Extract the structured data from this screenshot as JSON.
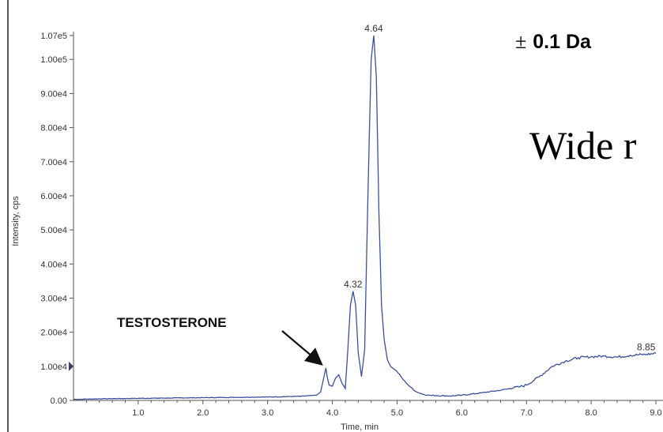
{
  "annotations": {
    "tolerance_symbol": "±",
    "tolerance_value": "0.1 Da",
    "slide_text": "Wide r",
    "compound_label": "TESTOSTERONE"
  },
  "colors": {
    "trace": "#3b4fa0",
    "axis": "#555555",
    "marker": "#3a3f6a"
  },
  "chart_data": {
    "type": "line",
    "title": "",
    "xlabel": "Time, min",
    "ylabel": "Intensity, cps",
    "xlim": [
      0,
      9.0
    ],
    "ylim": [
      0,
      107000
    ],
    "x_ticks": [
      1.0,
      2.0,
      3.0,
      4.0,
      5.0,
      6.0,
      7.0,
      8.0,
      9.0
    ],
    "x_tick_labels": [
      "1.0",
      "2.0",
      "3.0",
      "4.0",
      "5.0",
      "6.0",
      "7.0",
      "8.0",
      "9.0"
    ],
    "y_ticks": [
      0,
      10000,
      20000,
      30000,
      40000,
      50000,
      60000,
      70000,
      80000,
      90000,
      100000,
      107000
    ],
    "y_tick_labels": [
      "0.00",
      "1.00e4",
      "2.00e4",
      "3.00e4",
      "4.00e4",
      "5.00e4",
      "6.00e4",
      "7.00e4",
      "8.00e4",
      "9.00e4",
      "1.00e5",
      "1.07e5"
    ],
    "grid": false,
    "legend": "none",
    "series": [
      {
        "x": [
          0.0,
          0.5,
          1.0,
          1.5,
          2.0,
          2.5,
          3.0,
          3.5,
          3.75,
          3.82,
          3.86,
          3.9,
          3.92,
          3.95,
          4.0,
          4.05,
          4.1,
          4.15,
          4.2,
          4.24,
          4.28,
          4.32,
          4.36,
          4.4,
          4.45,
          4.5,
          4.55,
          4.6,
          4.64,
          4.68,
          4.72,
          4.76,
          4.8,
          4.85,
          4.9,
          5.0,
          5.1,
          5.2,
          5.3,
          5.4,
          5.5,
          5.8,
          6.0,
          6.3,
          6.6,
          6.9,
          7.0,
          7.2,
          7.4,
          7.6,
          7.8,
          8.0,
          8.2,
          8.4,
          8.6,
          8.85,
          9.0
        ],
        "y": [
          300,
          500,
          600,
          700,
          800,
          900,
          1000,
          1200,
          1500,
          2500,
          6000,
          9500,
          7000,
          4500,
          4200,
          6500,
          7500,
          5000,
          3500,
          15000,
          28000,
          32000,
          28000,
          14000,
          7000,
          15000,
          60000,
          100000,
          107000,
          95000,
          55000,
          28000,
          18000,
          12000,
          10000,
          8500,
          6000,
          4000,
          2500,
          1800,
          1500,
          1300,
          1500,
          2200,
          3000,
          4000,
          4500,
          7000,
          10000,
          11500,
          12500,
          12800,
          13000,
          12700,
          13200,
          13500,
          13800
        ]
      }
    ],
    "peak_labels": [
      {
        "x": 4.64,
        "y": 107000,
        "text": "4.64"
      },
      {
        "x": 4.32,
        "y": 32000,
        "text": "4.32"
      },
      {
        "x": 8.85,
        "y": 13500,
        "text": "8.85"
      }
    ],
    "compound_annotation": {
      "x": 3.9,
      "y": 9500,
      "text": "TESTOSTERONE"
    }
  }
}
